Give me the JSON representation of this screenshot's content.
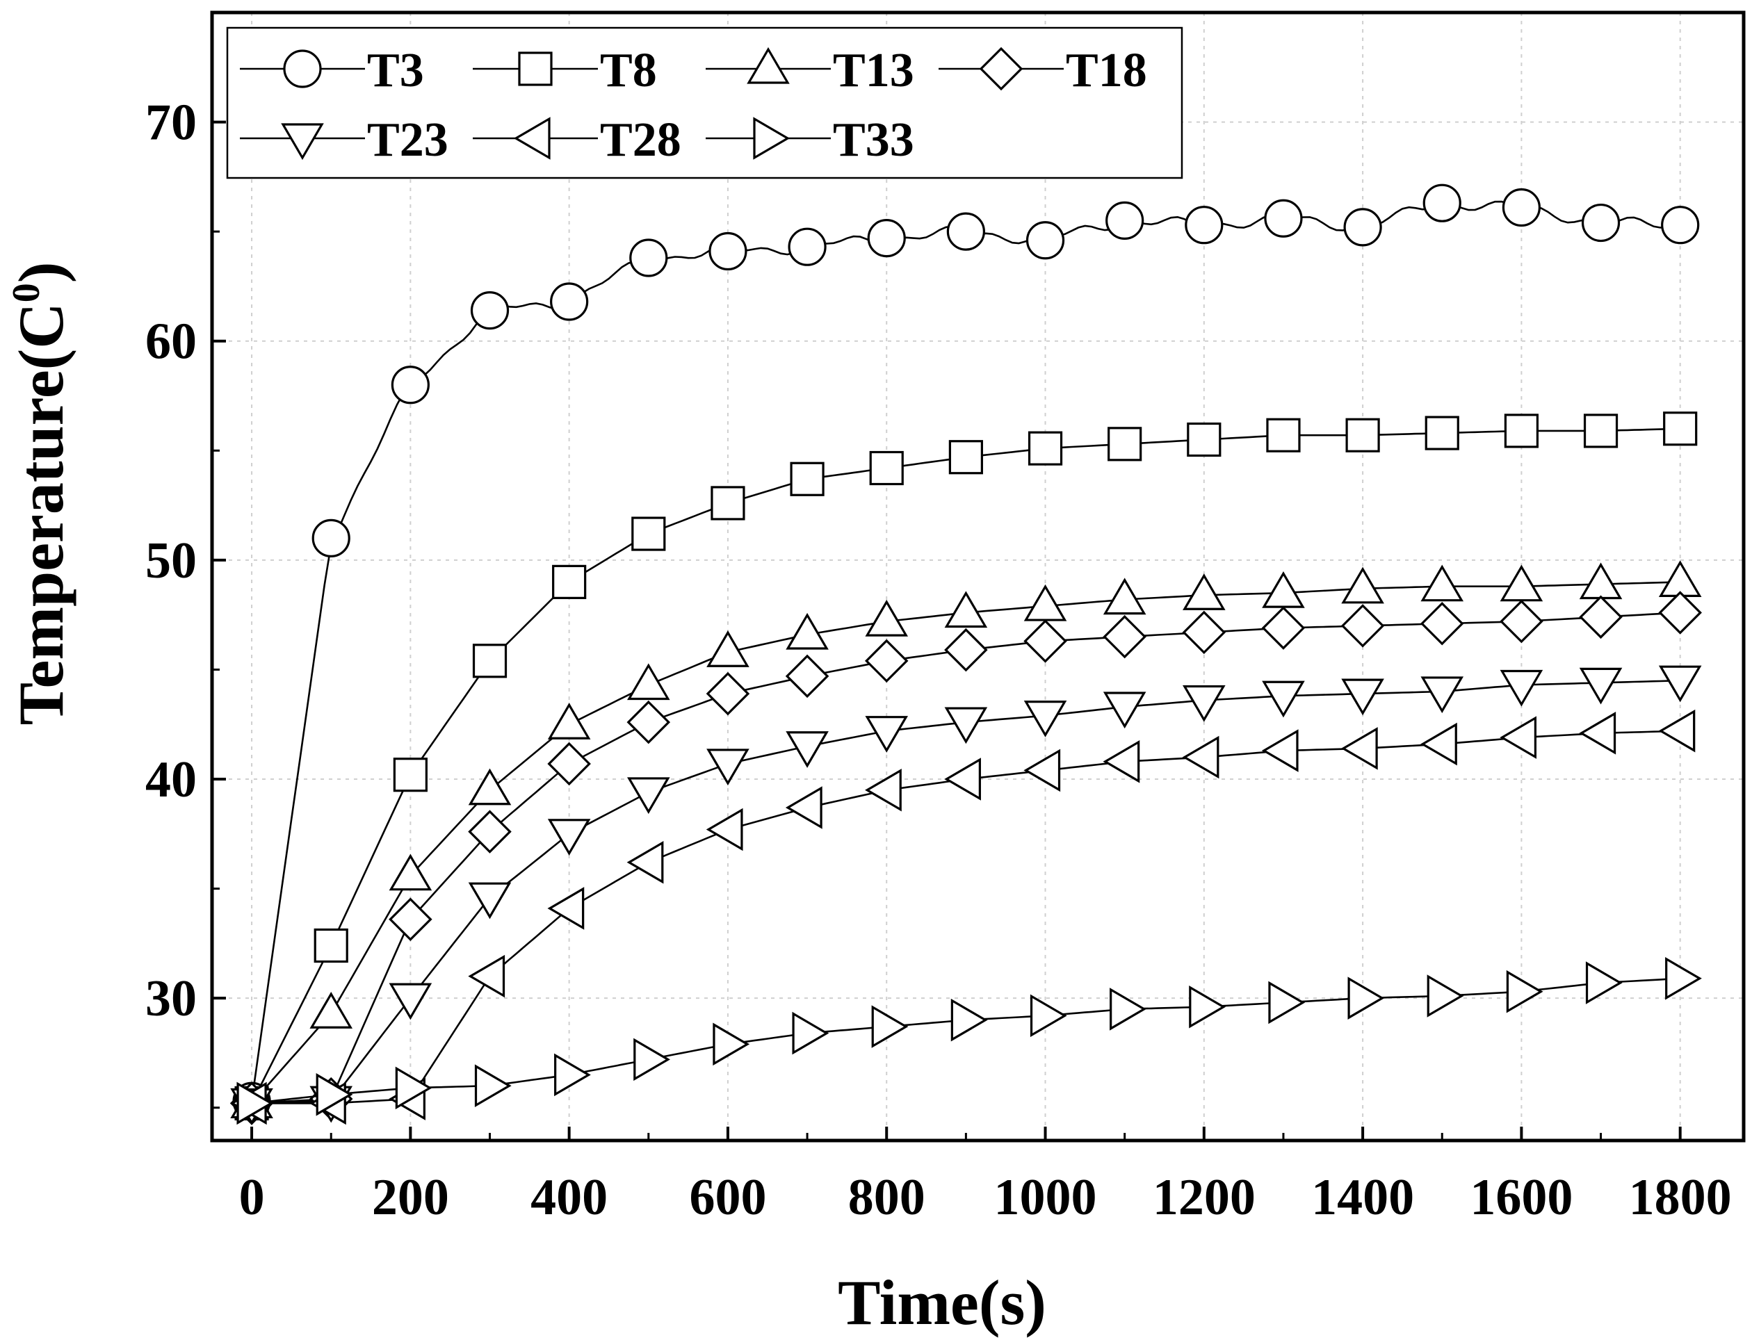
{
  "chart_data": {
    "type": "line",
    "title": "",
    "xlabel": "Time(s)",
    "ylabel": "Temperature(C",
    "ylabel_superscript": "0",
    "ylabel_suffix": ")",
    "xlim": [
      -50,
      1880
    ],
    "ylim": [
      23.5,
      75
    ],
    "xticks": [
      0,
      200,
      400,
      600,
      800,
      1000,
      1200,
      1400,
      1600,
      1800
    ],
    "yticks": [
      30,
      40,
      50,
      60,
      70
    ],
    "grid": true,
    "legend_position": "top-left",
    "x": [
      0,
      100,
      200,
      300,
      400,
      500,
      600,
      700,
      800,
      900,
      1000,
      1100,
      1200,
      1300,
      1400,
      1500,
      1600,
      1700,
      1800
    ],
    "series": [
      {
        "name": "T3",
        "marker": "circle",
        "values": [
          25.3,
          51.0,
          58.0,
          61.4,
          61.8,
          63.8,
          64.1,
          64.3,
          64.7,
          65.0,
          64.6,
          65.5,
          65.3,
          65.6,
          65.2,
          66.3,
          66.1,
          65.4,
          65.3
        ]
      },
      {
        "name": "T8",
        "marker": "square",
        "values": [
          25.2,
          32.4,
          40.2,
          45.4,
          49.0,
          51.2,
          52.6,
          53.7,
          54.2,
          54.7,
          55.1,
          55.3,
          55.5,
          55.7,
          55.7,
          55.8,
          55.9,
          55.9,
          56.0
        ]
      },
      {
        "name": "T13",
        "marker": "triangle-up",
        "values": [
          25.2,
          29.3,
          35.6,
          39.5,
          42.5,
          44.3,
          45.8,
          46.6,
          47.2,
          47.6,
          47.9,
          48.2,
          48.4,
          48.5,
          48.7,
          48.8,
          48.8,
          48.9,
          49.0
        ]
      },
      {
        "name": "T18",
        "marker": "diamond",
        "values": [
          25.2,
          25.4,
          33.6,
          37.6,
          40.7,
          42.6,
          43.9,
          44.7,
          45.4,
          45.9,
          46.3,
          46.5,
          46.7,
          46.9,
          47.0,
          47.1,
          47.2,
          47.4,
          47.6
        ]
      },
      {
        "name": "T23",
        "marker": "triangle-down",
        "values": [
          25.2,
          25.3,
          30.0,
          34.6,
          37.5,
          39.4,
          40.7,
          41.5,
          42.2,
          42.6,
          42.9,
          43.3,
          43.6,
          43.8,
          43.9,
          44.0,
          44.3,
          44.4,
          44.5
        ]
      },
      {
        "name": "T28",
        "marker": "triangle-left",
        "values": [
          25.2,
          25.2,
          25.4,
          31.0,
          34.1,
          36.2,
          37.7,
          38.7,
          39.5,
          40.0,
          40.4,
          40.8,
          41.0,
          41.3,
          41.4,
          41.6,
          41.9,
          42.1,
          42.2
        ]
      },
      {
        "name": "T33",
        "marker": "triangle-right",
        "values": [
          25.2,
          25.6,
          25.9,
          26.0,
          26.5,
          27.2,
          27.9,
          28.4,
          28.7,
          29.0,
          29.2,
          29.5,
          29.6,
          29.8,
          30.0,
          30.1,
          30.3,
          30.7,
          30.9
        ]
      }
    ]
  }
}
